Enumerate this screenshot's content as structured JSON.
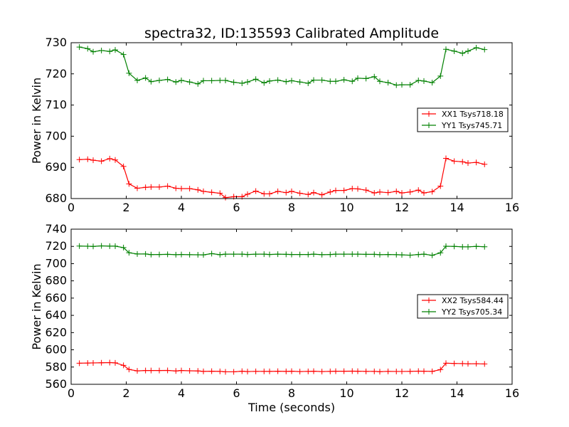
{
  "figure": {
    "title": "spectra32, ID:135593 Calibrated Amplitude",
    "xlabel": "Time (seconds)"
  },
  "colors": {
    "red": "#ff0000",
    "green": "#008000"
  },
  "chart_data": [
    {
      "type": "line",
      "title": "spectra32, ID:135593 Calibrated Amplitude",
      "xlabel": "",
      "ylabel": "Power in Kelvin",
      "xlim": [
        0,
        16
      ],
      "ylim": [
        680,
        730
      ],
      "xticks": [
        0,
        2,
        4,
        6,
        8,
        10,
        12,
        14,
        16
      ],
      "yticks": [
        680,
        690,
        700,
        710,
        720,
        730
      ],
      "grid": false,
      "legend_position": "right",
      "series": [
        {
          "name": "XX1 Tsys718.18",
          "color": "#ff0000",
          "marker": "+",
          "x": [
            0.3,
            0.6,
            0.8,
            1.1,
            1.4,
            1.6,
            1.9,
            2.1,
            2.4,
            2.7,
            2.9,
            3.2,
            3.5,
            3.8,
            4.0,
            4.3,
            4.6,
            4.8,
            5.1,
            5.4,
            5.6,
            5.9,
            6.2,
            6.4,
            6.7,
            7.0,
            7.2,
            7.5,
            7.8,
            8.0,
            8.3,
            8.6,
            8.8,
            9.1,
            9.4,
            9.6,
            9.9,
            10.2,
            10.4,
            10.7,
            11.0,
            11.2,
            11.5,
            11.8,
            12.0,
            12.3,
            12.6,
            12.8,
            13.1,
            13.4,
            13.6,
            13.9,
            14.2,
            14.4,
            14.7,
            15.0
          ],
          "y": [
            692.5,
            692.6,
            692.3,
            692.0,
            692.8,
            692.4,
            690.3,
            684.7,
            683.3,
            683.6,
            683.7,
            683.7,
            684.0,
            683.3,
            683.2,
            683.2,
            682.8,
            682.3,
            682.0,
            681.7,
            680.3,
            680.6,
            680.6,
            681.4,
            682.4,
            681.5,
            681.5,
            682.3,
            681.9,
            682.3,
            681.7,
            681.3,
            681.9,
            681.2,
            682.1,
            682.6,
            682.6,
            683.2,
            683.1,
            682.7,
            681.8,
            682.1,
            681.9,
            682.3,
            681.8,
            682.1,
            682.7,
            681.8,
            682.2,
            684.0,
            692.9,
            692.0,
            691.8,
            691.4,
            691.6,
            691.0
          ]
        },
        {
          "name": "YY1 Tsys745.71",
          "color": "#008000",
          "marker": "+",
          "x": [
            0.3,
            0.6,
            0.8,
            1.1,
            1.4,
            1.6,
            1.9,
            2.1,
            2.4,
            2.7,
            2.9,
            3.2,
            3.5,
            3.8,
            4.0,
            4.3,
            4.6,
            4.8,
            5.1,
            5.4,
            5.6,
            5.9,
            6.2,
            6.4,
            6.7,
            7.0,
            7.2,
            7.5,
            7.8,
            8.0,
            8.3,
            8.6,
            8.8,
            9.1,
            9.4,
            9.6,
            9.9,
            10.2,
            10.4,
            10.7,
            11.0,
            11.2,
            11.5,
            11.8,
            12.0,
            12.3,
            12.6,
            12.8,
            13.1,
            13.4,
            13.6,
            13.9,
            14.2,
            14.4,
            14.7,
            15.0
          ],
          "y": [
            728.6,
            728.1,
            727.1,
            727.5,
            727.2,
            727.7,
            726.2,
            720.2,
            717.9,
            718.7,
            717.5,
            717.9,
            718.2,
            717.4,
            717.9,
            717.4,
            716.8,
            717.8,
            717.8,
            717.9,
            717.9,
            717.3,
            717.0,
            717.4,
            718.3,
            717.1,
            717.7,
            718.0,
            717.5,
            717.8,
            717.4,
            717.0,
            718.0,
            718.0,
            717.6,
            717.6,
            718.1,
            717.6,
            718.6,
            718.5,
            719.1,
            717.6,
            717.2,
            716.4,
            716.5,
            716.5,
            717.9,
            717.7,
            717.2,
            719.3,
            727.9,
            727.3,
            726.6,
            727.3,
            728.4,
            727.8
          ]
        }
      ]
    },
    {
      "type": "line",
      "title": "",
      "xlabel": "Time (seconds)",
      "ylabel": "Power in Kelvin",
      "xlim": [
        0,
        16
      ],
      "ylim": [
        560,
        740
      ],
      "xticks": [
        0,
        2,
        4,
        6,
        8,
        10,
        12,
        14,
        16
      ],
      "yticks": [
        560,
        580,
        600,
        620,
        640,
        660,
        680,
        700,
        720,
        740
      ],
      "grid": false,
      "legend_position": "right",
      "series": [
        {
          "name": "XX2 Tsys584.44",
          "color": "#ff0000",
          "marker": "+",
          "x": [
            0.3,
            0.6,
            0.8,
            1.1,
            1.4,
            1.6,
            1.9,
            2.1,
            2.4,
            2.7,
            2.9,
            3.2,
            3.5,
            3.8,
            4.0,
            4.3,
            4.6,
            4.8,
            5.1,
            5.4,
            5.6,
            5.9,
            6.2,
            6.4,
            6.7,
            7.0,
            7.2,
            7.5,
            7.8,
            8.0,
            8.3,
            8.6,
            8.8,
            9.1,
            9.4,
            9.6,
            9.9,
            10.2,
            10.4,
            10.7,
            11.0,
            11.2,
            11.5,
            11.8,
            12.0,
            12.3,
            12.6,
            12.8,
            13.1,
            13.4,
            13.6,
            13.9,
            14.2,
            14.4,
            14.7,
            15.0
          ],
          "y": [
            584.5,
            584.7,
            584.8,
            585.0,
            585.2,
            584.9,
            582.0,
            577.2,
            575.6,
            576.0,
            576.0,
            576.0,
            576.1,
            575.5,
            576.0,
            575.7,
            575.5,
            575.0,
            575.2,
            575.0,
            574.5,
            574.5,
            575.2,
            574.8,
            575.0,
            575.0,
            575.0,
            575.2,
            575.0,
            575.2,
            574.8,
            575.0,
            575.2,
            574.8,
            575.0,
            575.2,
            575.2,
            575.3,
            575.2,
            575.0,
            575.0,
            574.7,
            575.0,
            574.9,
            574.9,
            575.0,
            575.3,
            575.2,
            575.0,
            577.0,
            584.5,
            584.2,
            584.0,
            583.8,
            583.9,
            583.6
          ]
        },
        {
          "name": "YY2 Tsys705.34",
          "color": "#008000",
          "marker": "+",
          "x": [
            0.3,
            0.6,
            0.8,
            1.1,
            1.4,
            1.6,
            1.9,
            2.1,
            2.4,
            2.7,
            2.9,
            3.2,
            3.5,
            3.8,
            4.0,
            4.3,
            4.6,
            4.8,
            5.1,
            5.4,
            5.6,
            5.9,
            6.2,
            6.4,
            6.7,
            7.0,
            7.2,
            7.5,
            7.8,
            8.0,
            8.3,
            8.6,
            8.8,
            9.1,
            9.4,
            9.6,
            9.9,
            10.2,
            10.4,
            10.7,
            11.0,
            11.2,
            11.5,
            11.8,
            12.0,
            12.3,
            12.6,
            12.8,
            13.1,
            13.4,
            13.6,
            13.9,
            14.2,
            14.4,
            14.7,
            15.0
          ],
          "y": [
            720.4,
            720.2,
            720.0,
            720.6,
            720.3,
            720.3,
            718.6,
            712.6,
            711.2,
            711.2,
            710.5,
            710.6,
            710.8,
            710.4,
            710.6,
            710.4,
            710.3,
            710.2,
            711.6,
            710.4,
            711.0,
            711.0,
            711.0,
            710.6,
            711.0,
            711.0,
            710.6,
            711.0,
            710.8,
            710.6,
            710.6,
            710.6,
            711.0,
            710.4,
            710.6,
            711.0,
            711.0,
            711.0,
            711.0,
            710.8,
            710.8,
            710.4,
            710.6,
            710.4,
            710.2,
            709.8,
            710.6,
            711.0,
            709.7,
            712.5,
            720.2,
            720.0,
            719.5,
            719.5,
            720.0,
            719.6
          ]
        }
      ]
    }
  ]
}
